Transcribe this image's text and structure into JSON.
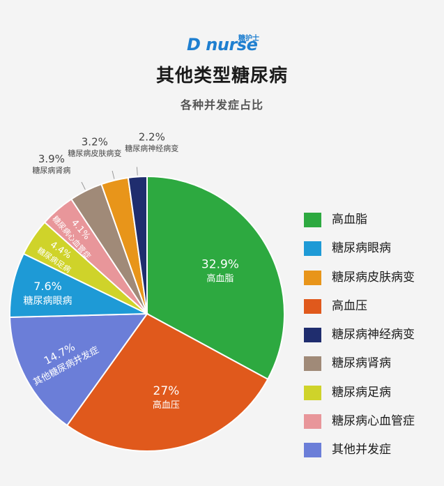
{
  "header": {
    "brand": "D nurse",
    "brand_cn": "糖护士",
    "title": "其他类型糖尿病",
    "subtitle": "各种并发症占比"
  },
  "chart_data": {
    "type": "pie",
    "title": "其他类型糖尿病",
    "subtitle": "各种并发症占比",
    "legend_position": "right",
    "slices": [
      {
        "label": "高血脂",
        "value": 32.9,
        "display": "32.9%",
        "color": "#2da940"
      },
      {
        "label": "高血压",
        "value": 27,
        "display": "27%",
        "color": "#e0591c"
      },
      {
        "label": "其他糖尿病并发症",
        "value": 14.7,
        "display": "14.7%",
        "color": "#6b7ed8"
      },
      {
        "label": "糖尿病眼病",
        "value": 7.6,
        "display": "7.6%",
        "color": "#1e9ad6"
      },
      {
        "label": "糖尿病足病",
        "value": 4.4,
        "display": "4.4%",
        "color": "#cfd32a"
      },
      {
        "label": "糖尿病心血管症",
        "value": 4.1,
        "display": "4.1%",
        "color": "#e8969a"
      },
      {
        "label": "糖尿病肾病",
        "value": 3.9,
        "display": "3.9%",
        "color": "#a08a78"
      },
      {
        "label": "糖尿病皮肤病变",
        "value": 3.2,
        "display": "3.2%",
        "color": "#e8951a"
      },
      {
        "label": "糖尿病神经病变",
        "value": 2.2,
        "display": "2.2%",
        "color": "#1f2d6e"
      }
    ],
    "legend": [
      {
        "label": "高血脂",
        "color": "#2da940"
      },
      {
        "label": "糖尿病眼病",
        "color": "#1e9ad6"
      },
      {
        "label": "糖尿病皮肤病变",
        "color": "#e8951a"
      },
      {
        "label": "高血压",
        "color": "#e0591c"
      },
      {
        "label": "糖尿病神经病变",
        "color": "#1f2d6e"
      },
      {
        "label": "糖尿病肾病",
        "color": "#a08a78"
      },
      {
        "label": "糖尿病足病",
        "color": "#cfd32a"
      },
      {
        "label": "糖尿病心血管症",
        "color": "#e8969a"
      },
      {
        "label": "其他并发症",
        "color": "#6b7ed8"
      }
    ]
  }
}
